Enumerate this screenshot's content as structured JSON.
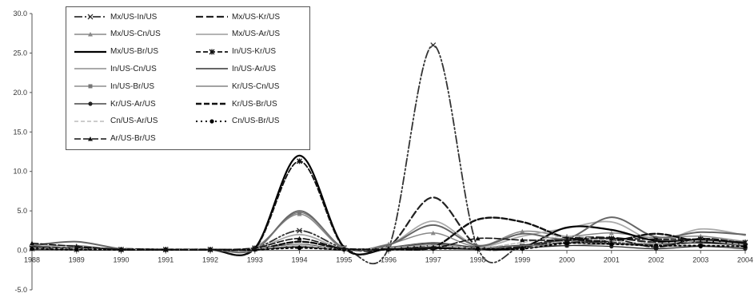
{
  "chart_data": {
    "type": "line",
    "title": "",
    "xlabel": "",
    "ylabel": "",
    "x": [
      "1988",
      "1989",
      "1990",
      "1991",
      "1992",
      "1993",
      "1994",
      "1995",
      "1996",
      "1997",
      "1998",
      "1999",
      "2000",
      "2001",
      "2002",
      "2003",
      "2004"
    ],
    "y_ticks": [
      "-5.0",
      "0.0",
      "5.0",
      "10.0",
      "15.0",
      "20.0",
      "25.0",
      "30.0"
    ],
    "ylim": [
      -5,
      30
    ],
    "grid": false,
    "legend_position": "top-left",
    "series": [
      {
        "name": "Mx/US-In/US",
        "color": "#333333",
        "dash": "10,3,2,3,2,3",
        "marker": "cross",
        "width": 1.8,
        "values": [
          0.2,
          0.1,
          0.1,
          0.1,
          0.1,
          0.3,
          2.5,
          0.3,
          0.3,
          26.0,
          0.3,
          0.5,
          1.0,
          1.0,
          0.6,
          1.0,
          0.6
        ]
      },
      {
        "name": "Mx/US-Kr/US",
        "color": "#222222",
        "dash": "9,4",
        "marker": "none",
        "width": 2.2,
        "values": [
          0.4,
          0.3,
          0.2,
          0.1,
          0.1,
          0.1,
          0.5,
          0.1,
          0.5,
          6.7,
          0.5,
          0.6,
          1.5,
          1.6,
          1.0,
          1.2,
          0.8
        ]
      },
      {
        "name": "Mx/US-Cn/US",
        "color": "#888888",
        "dash": "",
        "marker": "triangle",
        "width": 1.5,
        "values": [
          0.5,
          0.6,
          0.1,
          0.1,
          0.1,
          0.4,
          4.6,
          0.2,
          0.8,
          2.2,
          0.5,
          2.4,
          1.8,
          2.2,
          1.6,
          1.8,
          1.1
        ]
      },
      {
        "name": "Mx/US-Ar/US",
        "color": "#aaaaaa",
        "dash": "",
        "marker": "none",
        "width": 1.8,
        "values": [
          0.3,
          0.3,
          0.1,
          0.1,
          0.1,
          0.2,
          2.0,
          0.2,
          0.7,
          3.7,
          0.6,
          1.8,
          2.8,
          3.6,
          1.2,
          2.7,
          1.9
        ]
      },
      {
        "name": "Mx/US-Br/US",
        "color": "#000000",
        "dash": "",
        "marker": "none",
        "width": 2.2,
        "values": [
          0.4,
          0.2,
          0.1,
          0.1,
          0.1,
          0.3,
          12.0,
          0.4,
          0.2,
          0.3,
          0.2,
          0.4,
          2.9,
          2.6,
          1.2,
          1.3,
          0.9
        ]
      },
      {
        "name": "In/US-Kr/US",
        "color": "#111111",
        "dash": "6,3",
        "marker": "asterisk",
        "width": 1.8,
        "values": [
          0.3,
          0.3,
          0.1,
          0.1,
          0.1,
          0.2,
          11.3,
          0.3,
          0.2,
          0.6,
          0.3,
          0.4,
          1.4,
          1.5,
          1.4,
          1.4,
          1.0
        ]
      },
      {
        "name": "In/US-Cn/US",
        "color": "#555555",
        "dash": "",
        "marker": "none",
        "width": 1.0,
        "values": [
          0.2,
          0.2,
          0.1,
          0.1,
          0.1,
          0.1,
          0.5,
          0.1,
          0.4,
          1.0,
          0.4,
          0.6,
          0.9,
          0.9,
          0.8,
          0.9,
          0.6
        ]
      },
      {
        "name": "In/US-Ar/US",
        "color": "#666666",
        "dash": "",
        "marker": "none",
        "width": 2.0,
        "values": [
          0.6,
          1.1,
          0.2,
          0.1,
          0.1,
          0.1,
          5.0,
          0.3,
          0.7,
          3.2,
          0.6,
          2.1,
          1.5,
          4.2,
          1.7,
          2.3,
          2.0
        ]
      },
      {
        "name": "In/US-Br/US",
        "color": "#777777",
        "dash": "",
        "marker": "square",
        "width": 1.3,
        "values": [
          0.2,
          0.1,
          0.1,
          0.1,
          0.1,
          0.1,
          4.8,
          0.3,
          0.3,
          0.8,
          0.2,
          0.6,
          0.6,
          0.8,
          0.5,
          0.6,
          0.4
        ]
      },
      {
        "name": "Kr/US-Cn/US",
        "color": "#444444",
        "dash": "",
        "marker": "none",
        "width": 1.0,
        "values": [
          0.3,
          0.2,
          0.1,
          0.1,
          0.1,
          0.2,
          0.8,
          0.1,
          0.3,
          0.9,
          0.4,
          0.7,
          1.2,
          0.9,
          0.8,
          1.0,
          0.7
        ]
      },
      {
        "name": "Kr/US-Ar/US",
        "color": "#222222",
        "dash": "",
        "marker": "dot",
        "width": 1.2,
        "values": [
          0.2,
          0.1,
          0.1,
          0.1,
          0.1,
          0.1,
          0.4,
          0.1,
          0.2,
          0.4,
          0.2,
          0.3,
          0.6,
          0.5,
          0.2,
          0.5,
          0.2
        ]
      },
      {
        "name": "Kr/US-Br/US",
        "color": "#111111",
        "dash": "7,3",
        "marker": "none",
        "width": 2.4,
        "values": [
          0.2,
          0.2,
          0.1,
          0.1,
          0.1,
          0.1,
          1.1,
          0.2,
          0.2,
          0.4,
          3.9,
          3.6,
          1.6,
          1.2,
          2.1,
          1.1,
          1.0
        ]
      },
      {
        "name": "Cn/US-Ar/US",
        "color": "#bbbbbb",
        "dash": "5,3",
        "marker": "none",
        "width": 1.5,
        "values": [
          0.3,
          0.2,
          0.1,
          0.1,
          0.1,
          0.2,
          0.6,
          0.1,
          0.3,
          0.6,
          0.3,
          1.0,
          1.8,
          1.2,
          0.9,
          1.2,
          0.7
        ]
      },
      {
        "name": "Cn/US-Br/US",
        "color": "#000000",
        "dash": "2,4",
        "marker": "dot",
        "width": 2.0,
        "values": [
          0.2,
          0.1,
          0.1,
          0.1,
          0.1,
          0.1,
          0.3,
          0.1,
          0.1,
          0.2,
          0.2,
          0.2,
          0.9,
          0.8,
          0.6,
          0.6,
          0.5
        ]
      },
      {
        "name": "Ar/US-Br/US",
        "color": "#111111",
        "dash": "8,3",
        "marker": "triangle",
        "width": 1.6,
        "values": [
          0.9,
          0.5,
          0.1,
          0.1,
          0.1,
          0.3,
          1.5,
          0.2,
          0.2,
          0.3,
          1.5,
          1.3,
          1.3,
          1.5,
          0.4,
          1.5,
          0.9
        ]
      }
    ]
  }
}
